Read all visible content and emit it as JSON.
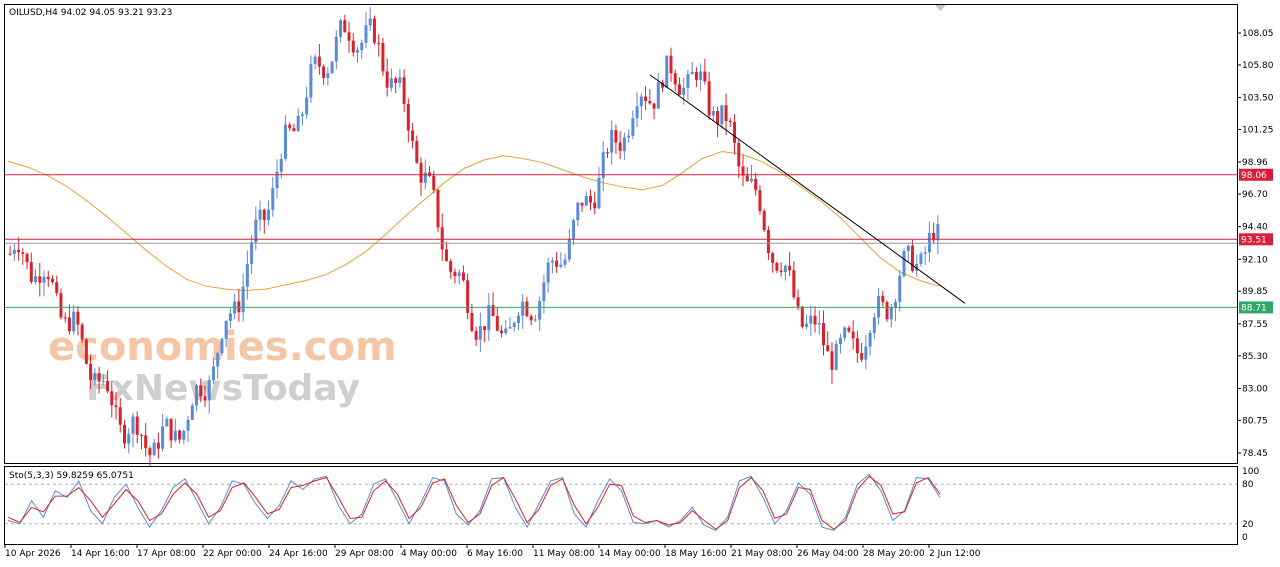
{
  "colors": {
    "bull": "#5b8ad8",
    "bear": "#d9232c",
    "ma": "#e8a13a",
    "resistance": "#d81e3a",
    "support": "#2ea868",
    "trendline": "#000000",
    "k_line": "#5b8ad8",
    "d_line": "#d9232c"
  },
  "header": {
    "symbol_info": "OILUSD,H4  94.02 94.05 93.21 93.23"
  },
  "watermark": {
    "line1": "economies.com",
    "line2": "FxNewsToday"
  },
  "price_labels": {
    "resistance": "98.06",
    "current": "93.51",
    "support": "88.71",
    "hidden": "93.23"
  },
  "stochastic": {
    "label": "Sto(5,3,3) 59.8259 65.0751",
    "levels": [
      "100",
      "80",
      "20",
      "0"
    ]
  },
  "chart_data": [
    {
      "type": "candlestick",
      "title": "OILUSD,H4",
      "ohlc_last": {
        "open": 94.02,
        "high": 94.05,
        "low": 93.21,
        "close": 93.23
      },
      "ylim": [
        78.45,
        109.0
      ],
      "y_ticks": [
        "108.05",
        "105.80",
        "103.50",
        "101.25",
        "98.96",
        "96.70",
        "94.40",
        "92.10",
        "89.85",
        "87.55",
        "85.30",
        "83.00",
        "80.75",
        "78.45"
      ],
      "x_ticks": [
        "10 Apr 2026",
        "14 Apr 16:00",
        "17 Apr 08:00",
        "22 Apr 00:00",
        "24 Apr 16:00",
        "29 Apr 08:00",
        "4 May 00:00",
        "6 May 16:00",
        "11 May 08:00",
        "14 May 00:00",
        "18 May 16:00",
        "21 May 08:00",
        "26 May 04:00",
        "28 May 20:00",
        "2 Jun 12:00"
      ],
      "horizontal_lines": [
        {
          "name": "resistance",
          "value": 98.06
        },
        {
          "name": "current",
          "value": 93.51
        },
        {
          "name": "support",
          "value": 88.71
        }
      ],
      "trendline": {
        "from": {
          "x": "18 May 16:00",
          "y": 105.1
        },
        "to": {
          "x": "3 Jun",
          "y": 89.2
        }
      },
      "moving_average": {
        "values": [
          99.0,
          98.6,
          98.0,
          97.2,
          96.2,
          95.1,
          93.9,
          92.7,
          91.6,
          90.7,
          90.2,
          90.0,
          89.9,
          90.0,
          90.3,
          90.6,
          91.0,
          91.7,
          92.6,
          93.8,
          95.1,
          96.3,
          97.5,
          98.5,
          99.1,
          99.4,
          99.2,
          98.9,
          98.4,
          97.9,
          97.5,
          97.2,
          97.0,
          97.3,
          98.2,
          99.2,
          99.7,
          99.5,
          99.0,
          98.2,
          97.2,
          96.2,
          95.0,
          93.6,
          92.2,
          91.2,
          90.6,
          90.2
        ]
      },
      "key_points": [
        {
          "label": "start",
          "x": "10 Apr 2026",
          "y": 92.5
        },
        {
          "label": "low",
          "x": "17 Apr 08:00",
          "y": 79.2
        },
        {
          "label": "high",
          "x": "29 Apr 08:00",
          "y": 108.0
        },
        {
          "label": "swing low",
          "x": "6 May 16:00",
          "y": 87.2
        },
        {
          "label": "swing high",
          "x": "18 May 16:00",
          "y": 105.0
        },
        {
          "label": "low",
          "x": "28 May 20:00",
          "y": 85.7
        },
        {
          "label": "last",
          "x": "2 Jun 12:00",
          "y": 93.23
        }
      ]
    },
    {
      "type": "line",
      "title": "Sto(5,3,3)",
      "ylim": [
        0,
        100
      ],
      "levels": [
        20,
        80
      ],
      "series": [
        {
          "name": "K",
          "values": [
            25,
            20,
            55,
            30,
            70,
            60,
            85,
            40,
            20,
            60,
            80,
            45,
            15,
            40,
            75,
            88,
            55,
            20,
            45,
            85,
            80,
            50,
            28,
            48,
            85,
            72,
            88,
            92,
            48,
            20,
            35,
            80,
            88,
            55,
            20,
            52,
            90,
            85,
            35,
            18,
            40,
            88,
            90,
            45,
            15,
            50,
            85,
            90,
            35,
            15,
            55,
            88,
            70,
            22,
            20,
            25,
            15,
            25,
            45,
            18,
            10,
            30,
            85,
            92,
            60,
            20,
            40,
            82,
            65,
            15,
            10,
            30,
            80,
            95,
            70,
            25,
            40,
            90,
            88,
            60
          ]
        },
        {
          "name": "D",
          "values": [
            30,
            22,
            45,
            38,
            62,
            62,
            75,
            55,
            30,
            50,
            72,
            55,
            25,
            35,
            65,
            82,
            65,
            30,
            40,
            75,
            82,
            60,
            35,
            42,
            75,
            78,
            85,
            90,
            60,
            28,
            30,
            70,
            85,
            65,
            28,
            45,
            82,
            88,
            48,
            22,
            35,
            78,
            90,
            58,
            22,
            42,
            78,
            88,
            48,
            20,
            45,
            80,
            78,
            32,
            22,
            25,
            18,
            22,
            40,
            25,
            12,
            25,
            75,
            90,
            70,
            28,
            35,
            75,
            72,
            25,
            12,
            25,
            72,
            92,
            78,
            35,
            38,
            82,
            90,
            65
          ]
        }
      ]
    }
  ]
}
